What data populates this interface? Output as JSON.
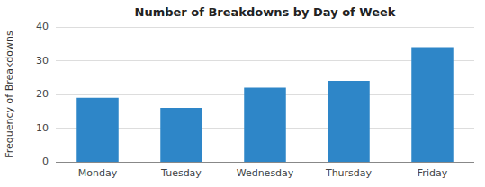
{
  "chart_data": {
    "type": "bar",
    "title": "Number of Breakdowns by Day of Week",
    "ylabel": "Frequency of Breakdowns",
    "categories": [
      "Monday",
      "Tuesday",
      "Wednesday",
      "Thursday",
      "Friday"
    ],
    "values": [
      19,
      16,
      22,
      24,
      34
    ],
    "color": "#2E86C8",
    "ylim": [
      0,
      40
    ],
    "yticks": [
      0,
      10,
      20,
      30,
      40
    ],
    "grid": true
  }
}
